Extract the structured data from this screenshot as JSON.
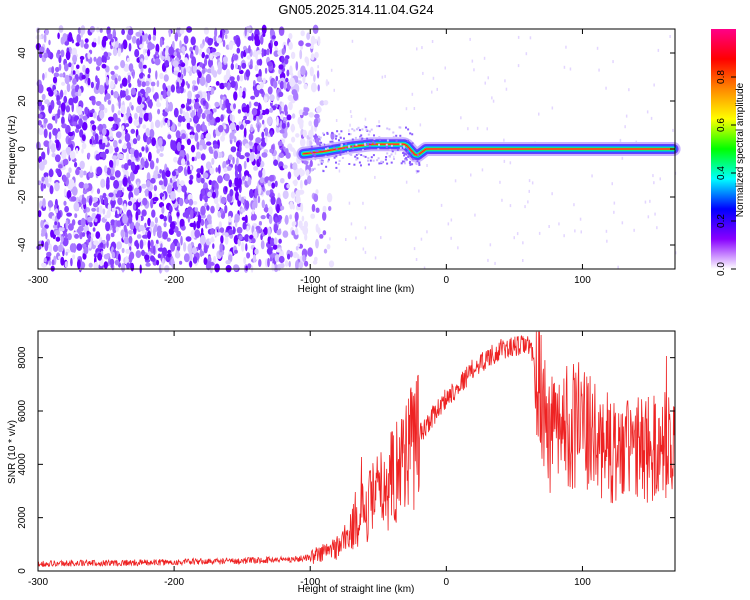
{
  "title": "GN05.2025.314.11.04.G24",
  "colors": {
    "snr_line": "#ee2222",
    "spectrum_low": "#f4eeff",
    "spectrum_mid": "#7b2cff",
    "spectrum_high": "#ff1a4d"
  },
  "chart_data": [
    {
      "type": "heatmap",
      "title": "GN05.2025.314.11.04.G24",
      "xlabel": "Height of straight line (km)",
      "ylabel": "Frequency (Hz)",
      "xlim": [
        -300,
        168
      ],
      "ylim": [
        -50,
        50
      ],
      "xticks": [
        -300,
        -200,
        -100,
        0,
        100
      ],
      "yticks": [
        -40,
        -20,
        0,
        20,
        40
      ],
      "colorbar": {
        "label": "Normalized spectral amplitude",
        "range": [
          0,
          1
        ],
        "ticks": [
          "0.0",
          "0.2",
          "0.4",
          "0.6",
          "0.8"
        ],
        "colormap": [
          "#ffffff",
          "#8800ff",
          "#0000ff",
          "#00ffff",
          "#00ff00",
          "#ffff00",
          "#ff8800",
          "#ff0000",
          "#ff0088"
        ]
      },
      "description_of_content": {
        "noise_region_x": [
          -300,
          -95
        ],
        "carrier_frequency_hz": [
          [
            -105,
            -2
          ],
          [
            -90,
            -1
          ],
          [
            -70,
            1
          ],
          [
            -55,
            2
          ],
          [
            -40,
            2
          ],
          [
            -30,
            2
          ],
          [
            -22,
            -3
          ],
          [
            -15,
            0
          ],
          [
            0,
            0
          ],
          [
            50,
            0
          ],
          [
            100,
            0
          ],
          [
            168,
            0
          ]
        ]
      }
    },
    {
      "type": "line",
      "xlabel": "Height of straight line (km)",
      "ylabel": "SNR (10 * v/v)",
      "xlim": [
        -300,
        168
      ],
      "ylim": [
        0,
        9000
      ],
      "xticks": [
        -300,
        -200,
        -100,
        0,
        100
      ],
      "yticks": [
        0,
        2000,
        4000,
        6000,
        8000
      ],
      "series": [
        {
          "envelope_points": [
            [
              -300,
              280
            ],
            [
              -250,
              300
            ],
            [
              -200,
              330
            ],
            [
              -150,
              380
            ],
            [
              -110,
              450
            ],
            [
              -100,
              520
            ],
            [
              -90,
              700
            ],
            [
              -80,
              900
            ],
            [
              -70,
              1500
            ],
            [
              -60,
              2300
            ],
            [
              -50,
              2900
            ],
            [
              -40,
              3500
            ],
            [
              -30,
              4500
            ],
            [
              -20,
              5100
            ],
            [
              -10,
              5800
            ],
            [
              0,
              6500
            ],
            [
              10,
              7000
            ],
            [
              20,
              7600
            ],
            [
              30,
              8000
            ],
            [
              40,
              8300
            ],
            [
              50,
              8400
            ],
            [
              60,
              8500
            ],
            [
              65,
              7900
            ],
            [
              68,
              7000
            ],
            [
              72,
              5500
            ],
            [
              80,
              5000
            ],
            [
              90,
              5600
            ],
            [
              100,
              5400
            ],
            [
              110,
              4800
            ],
            [
              120,
              4600
            ],
            [
              130,
              4400
            ],
            [
              140,
              4600
            ],
            [
              150,
              4500
            ],
            [
              160,
              4700
            ],
            [
              168,
              4600
            ]
          ]
        }
      ]
    }
  ]
}
